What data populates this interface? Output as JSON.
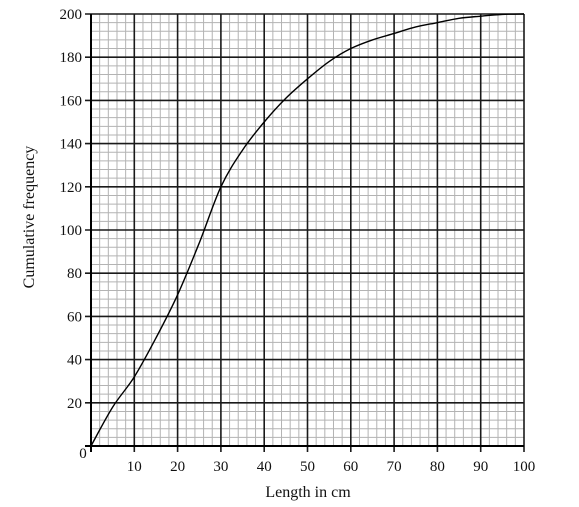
{
  "chart_data": {
    "type": "line",
    "xlabel": "Length in cm",
    "ylabel": "Cumulative frequency",
    "xlim": [
      0,
      100
    ],
    "ylim": [
      0,
      200
    ],
    "x_ticks": [
      0,
      10,
      20,
      30,
      40,
      50,
      60,
      70,
      80,
      90,
      100
    ],
    "y_ticks": [
      0,
      20,
      40,
      60,
      80,
      100,
      120,
      140,
      160,
      180,
      200
    ],
    "x_tick_labels": [
      "10",
      "20",
      "30",
      "40",
      "50",
      "60",
      "70",
      "80",
      "90",
      "100"
    ],
    "y_tick_labels": [
      "20",
      "40",
      "60",
      "80",
      "100",
      "120",
      "140",
      "160",
      "180",
      "200"
    ],
    "origin_label": "0",
    "minor_step_x": 2,
    "minor_step_y": 4,
    "grid": true,
    "series": [
      {
        "x": [
          0,
          5,
          10,
          15,
          20,
          25,
          30,
          35,
          40,
          45,
          50,
          55,
          60,
          65,
          70,
          75,
          80,
          85,
          90,
          95,
          100
        ],
        "values": [
          0,
          18,
          32,
          50,
          70,
          94,
          120,
          137,
          150,
          161,
          170,
          178,
          184,
          188,
          191,
          194,
          196,
          198,
          199,
          199.8,
          200
        ]
      }
    ],
    "colors": {
      "line": "#000000",
      "major_grid": "#1a1a1a",
      "minor_grid": "#b3b3b3"
    }
  }
}
